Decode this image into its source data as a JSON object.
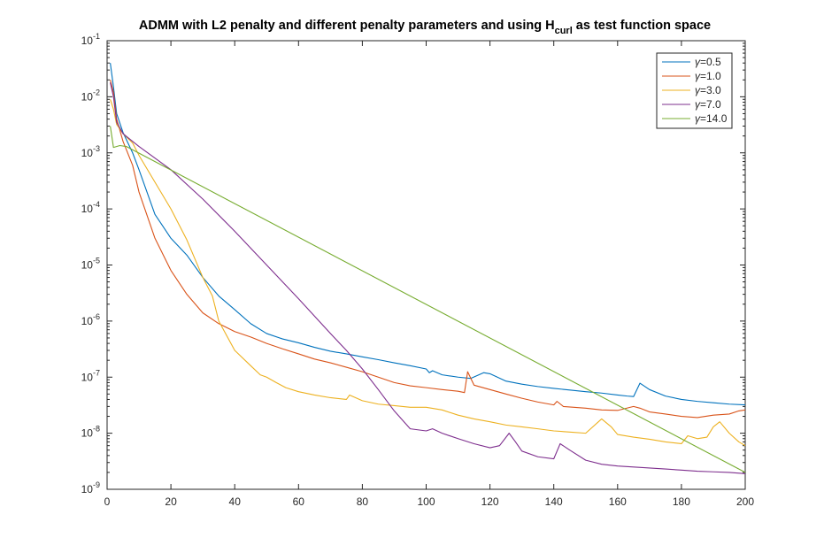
{
  "chart_data": {
    "type": "line",
    "title": "ADMM with L2 penalty and different penalty parameters and using H",
    "title_sub": "curl",
    "title_after": " as test function space",
    "xlabel": "",
    "ylabel": "",
    "xlim": [
      0,
      200
    ],
    "ylim": [
      1e-09,
      0.1
    ],
    "y_scale": "log",
    "x_ticks": [
      0,
      20,
      40,
      60,
      80,
      100,
      120,
      140,
      160,
      180,
      200
    ],
    "x_tick_labels": [
      "0",
      "20",
      "40",
      "60",
      "80",
      "100",
      "120",
      "140",
      "160",
      "180",
      "200"
    ],
    "y_ticks": [
      -9,
      -8,
      -7,
      -6,
      -5,
      -4,
      -3,
      -2,
      -1
    ],
    "y_tick_base": "10",
    "y_tick_exponents": [
      "-9",
      "-8",
      "-7",
      "-6",
      "-5",
      "-4",
      "-3",
      "-2",
      "-1"
    ],
    "grid": false,
    "legend_position": "top-right",
    "legend_prefix": "γ",
    "series": [
      {
        "name": "=0.5",
        "color": "#0072BD",
        "points": [
          [
            1,
            0.04
          ],
          [
            2,
            0.015
          ],
          [
            3,
            0.005
          ],
          [
            5,
            0.0023
          ],
          [
            8,
            0.001
          ],
          [
            10,
            0.0005
          ],
          [
            15,
            8e-05
          ],
          [
            20,
            3e-05
          ],
          [
            25,
            1.5e-05
          ],
          [
            30,
            6e-06
          ],
          [
            35,
            2.8e-06
          ],
          [
            40,
            1.6e-06
          ],
          [
            45,
            9e-07
          ],
          [
            50,
            6e-07
          ],
          [
            55,
            4.8e-07
          ],
          [
            60,
            4.1e-07
          ],
          [
            65,
            3.4e-07
          ],
          [
            70,
            2.9e-07
          ],
          [
            75,
            2.6e-07
          ],
          [
            80,
            2.3e-07
          ],
          [
            85,
            2.05e-07
          ],
          [
            90,
            1.8e-07
          ],
          [
            95,
            1.6e-07
          ],
          [
            100,
            1.4e-07
          ],
          [
            101,
            1.2e-07
          ],
          [
            102,
            1.3e-07
          ],
          [
            105,
            1.1e-07
          ],
          [
            110,
            1e-07
          ],
          [
            114,
            9.5e-08
          ],
          [
            118,
            1.2e-07
          ],
          [
            120,
            1.15e-07
          ],
          [
            125,
            8.5e-08
          ],
          [
            130,
            7.5e-08
          ],
          [
            135,
            6.8e-08
          ],
          [
            140,
            6.3e-08
          ],
          [
            145,
            5.9e-08
          ],
          [
            150,
            5.5e-08
          ],
          [
            155,
            5.2e-08
          ],
          [
            160,
            4.8e-08
          ],
          [
            163,
            4.6e-08
          ],
          [
            165,
            4.5e-08
          ],
          [
            167,
            7.8e-08
          ],
          [
            170,
            6e-08
          ],
          [
            175,
            4.6e-08
          ],
          [
            180,
            4e-08
          ],
          [
            185,
            3.7e-08
          ],
          [
            190,
            3.5e-08
          ],
          [
            195,
            3.3e-08
          ],
          [
            200,
            3.2e-08
          ]
        ]
      },
      {
        "name": "=1.0",
        "color": "#D95319",
        "points": [
          [
            1,
            0.02
          ],
          [
            2,
            0.012
          ],
          [
            3,
            0.004
          ],
          [
            5,
            0.0016
          ],
          [
            8,
            0.0006
          ],
          [
            10,
            0.0002
          ],
          [
            15,
            3e-05
          ],
          [
            20,
            8e-06
          ],
          [
            25,
            3e-06
          ],
          [
            30,
            1.4e-06
          ],
          [
            35,
            9e-07
          ],
          [
            40,
            6.5e-07
          ],
          [
            45,
            5.2e-07
          ],
          [
            50,
            4e-07
          ],
          [
            55,
            3.2e-07
          ],
          [
            60,
            2.6e-07
          ],
          [
            65,
            2.1e-07
          ],
          [
            70,
            1.8e-07
          ],
          [
            75,
            1.5e-07
          ],
          [
            80,
            1.25e-07
          ],
          [
            85,
            1e-07
          ],
          [
            90,
            8e-08
          ],
          [
            95,
            7e-08
          ],
          [
            100,
            6.5e-08
          ],
          [
            105,
            6e-08
          ],
          [
            110,
            5.6e-08
          ],
          [
            112,
            5.3e-08
          ],
          [
            113,
            1.25e-07
          ],
          [
            115,
            7.2e-08
          ],
          [
            120,
            6e-08
          ],
          [
            125,
            5e-08
          ],
          [
            130,
            4.2e-08
          ],
          [
            135,
            3.6e-08
          ],
          [
            140,
            3.2e-08
          ],
          [
            141,
            3.7e-08
          ],
          [
            143,
            3e-08
          ],
          [
            150,
            2.8e-08
          ],
          [
            155,
            2.6e-08
          ],
          [
            160,
            2.55e-08
          ],
          [
            165,
            3e-08
          ],
          [
            167,
            2.8e-08
          ],
          [
            170,
            2.4e-08
          ],
          [
            175,
            2.2e-08
          ],
          [
            180,
            2e-08
          ],
          [
            185,
            1.9e-08
          ],
          [
            190,
            2.1e-08
          ],
          [
            195,
            2.2e-08
          ],
          [
            198,
            2.5e-08
          ],
          [
            200,
            2.6e-08
          ]
        ]
      },
      {
        "name": "=3.0",
        "color": "#EDB120",
        "points": [
          [
            1,
            0.009
          ],
          [
            2,
            0.006
          ],
          [
            3,
            0.0032
          ],
          [
            5,
            0.0022
          ],
          [
            8,
            0.0015
          ],
          [
            10,
            0.0009
          ],
          [
            15,
            0.0003
          ],
          [
            20,
            0.0001
          ],
          [
            25,
            2.8e-05
          ],
          [
            30,
            6e-06
          ],
          [
            33,
            2.8e-06
          ],
          [
            35,
            1e-06
          ],
          [
            40,
            3e-07
          ],
          [
            45,
            1.6e-07
          ],
          [
            48,
            1.1e-07
          ],
          [
            50,
            1e-07
          ],
          [
            53,
            8e-08
          ],
          [
            56,
            6.5e-08
          ],
          [
            60,
            5.5e-08
          ],
          [
            65,
            4.8e-08
          ],
          [
            70,
            4.3e-08
          ],
          [
            75,
            4e-08
          ],
          [
            76,
            4.8e-08
          ],
          [
            80,
            3.8e-08
          ],
          [
            85,
            3.3e-08
          ],
          [
            90,
            3.1e-08
          ],
          [
            95,
            2.9e-08
          ],
          [
            100,
            2.9e-08
          ],
          [
            105,
            2.6e-08
          ],
          [
            110,
            2.1e-08
          ],
          [
            115,
            1.8e-08
          ],
          [
            120,
            1.6e-08
          ],
          [
            125,
            1.4e-08
          ],
          [
            130,
            1.3e-08
          ],
          [
            135,
            1.2e-08
          ],
          [
            140,
            1.1e-08
          ],
          [
            145,
            1.05e-08
          ],
          [
            150,
            1e-08
          ],
          [
            155,
            1.8e-08
          ],
          [
            158,
            1.3e-08
          ],
          [
            160,
            9.5e-09
          ],
          [
            165,
            8.5e-09
          ],
          [
            170,
            7.8e-09
          ],
          [
            175,
            7e-09
          ],
          [
            180,
            6.5e-09
          ],
          [
            182,
            9e-09
          ],
          [
            185,
            8e-09
          ],
          [
            188,
            8.5e-09
          ],
          [
            190,
            1.3e-08
          ],
          [
            192,
            1.6e-08
          ],
          [
            195,
            1e-08
          ],
          [
            198,
            7e-09
          ],
          [
            200,
            6e-09
          ]
        ]
      },
      {
        "name": "=7.0",
        "color": "#7E2F8E",
        "points": [
          [
            1,
            0.018
          ],
          [
            2,
            0.01
          ],
          [
            3,
            0.0035
          ],
          [
            5,
            0.0022
          ],
          [
            8,
            0.0016
          ],
          [
            10,
            0.0013
          ],
          [
            20,
            0.0005
          ],
          [
            30,
            0.00015
          ],
          [
            40,
            4e-05
          ],
          [
            50,
            1e-05
          ],
          [
            60,
            2.5e-06
          ],
          [
            70,
            6e-07
          ],
          [
            75,
            3e-07
          ],
          [
            80,
            1.4e-07
          ],
          [
            85,
            6e-08
          ],
          [
            90,
            2.5e-08
          ],
          [
            95,
            1.2e-08
          ],
          [
            100,
            1.1e-08
          ],
          [
            102,
            1.2e-08
          ],
          [
            105,
            1e-08
          ],
          [
            110,
            8e-09
          ],
          [
            115,
            6.5e-09
          ],
          [
            120,
            5.5e-09
          ],
          [
            123,
            6e-09
          ],
          [
            126,
            1e-08
          ],
          [
            128,
            7e-09
          ],
          [
            130,
            4.8e-09
          ],
          [
            135,
            3.8e-09
          ],
          [
            140,
            3.5e-09
          ],
          [
            142,
            6.5e-09
          ],
          [
            145,
            5e-09
          ],
          [
            150,
            3.3e-09
          ],
          [
            155,
            2.8e-09
          ],
          [
            160,
            2.6e-09
          ],
          [
            165,
            2.5e-09
          ],
          [
            170,
            2.4e-09
          ],
          [
            175,
            2.3e-09
          ],
          [
            180,
            2.2e-09
          ],
          [
            185,
            2.1e-09
          ],
          [
            190,
            2.05e-09
          ],
          [
            195,
            2e-09
          ],
          [
            200,
            1.9e-09
          ]
        ]
      },
      {
        "name": "=14.0",
        "color": "#77AC30",
        "points": [
          [
            1,
            0.003
          ],
          [
            2,
            0.00125
          ],
          [
            4,
            0.00135
          ],
          [
            6,
            0.0013
          ],
          [
            200,
            2e-09
          ]
        ]
      }
    ]
  }
}
